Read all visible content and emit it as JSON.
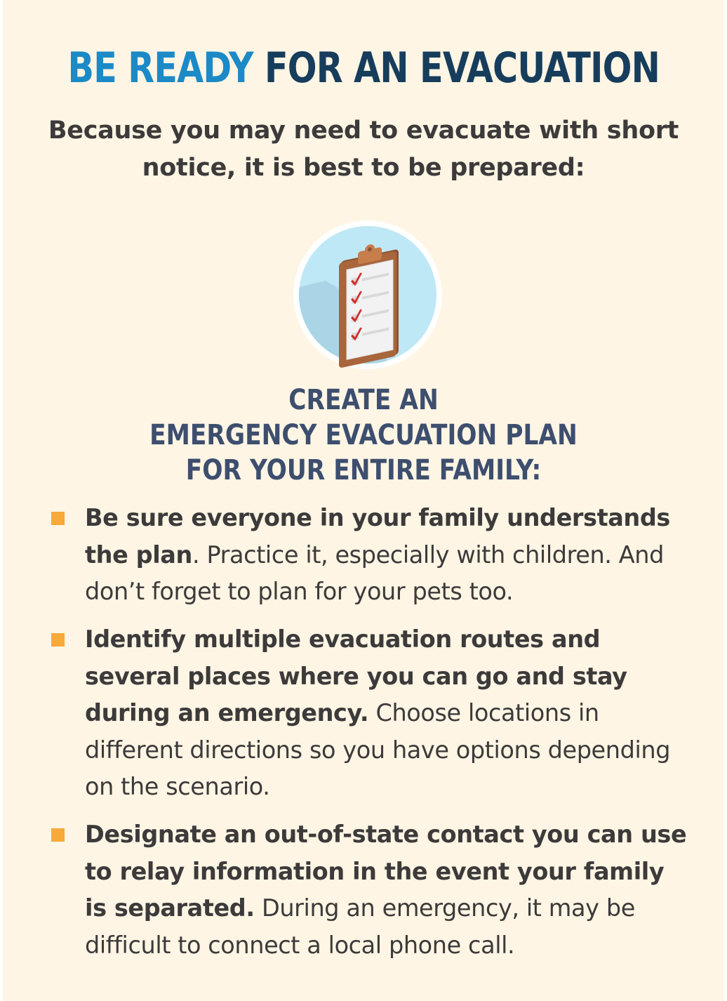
{
  "title": {
    "accent": "BE READY",
    "rest": "FOR AN EVACUATION"
  },
  "intro": {
    "line1": "Because you may need to evacuate with short",
    "line2": "notice, it is best to be prepared:"
  },
  "icon": "clipboard-checklist-icon",
  "subhead": {
    "line1": "CREATE AN",
    "line2": "EMERGENCY EVACUATION PLAN",
    "line3": "FOR YOUR ENTIRE FAMILY:"
  },
  "bullets": [
    {
      "bold": "Be sure everyone in your family understands the plan",
      "regular": ". Practice it, especially with children. And don’t forget to plan for your pets too."
    },
    {
      "bold": "Identify multiple evacuation routes and several places where you can go and stay during an emergency.",
      "regular": " Choose locations in different directions so you have options depending on the scenario."
    },
    {
      "bold": "Designate an out-of-state contact you can use to relay information in the event your family is separated.",
      "regular": " During an emergency, it may be difficult to connect a local phone call."
    }
  ],
  "colors": {
    "background": "#fef5e4",
    "accent_blue": "#1b8ac7",
    "navy": "#173d5c",
    "subhead": "#3d4e6e",
    "bullet": "#f7a93a",
    "text": "#3c3a3a"
  }
}
